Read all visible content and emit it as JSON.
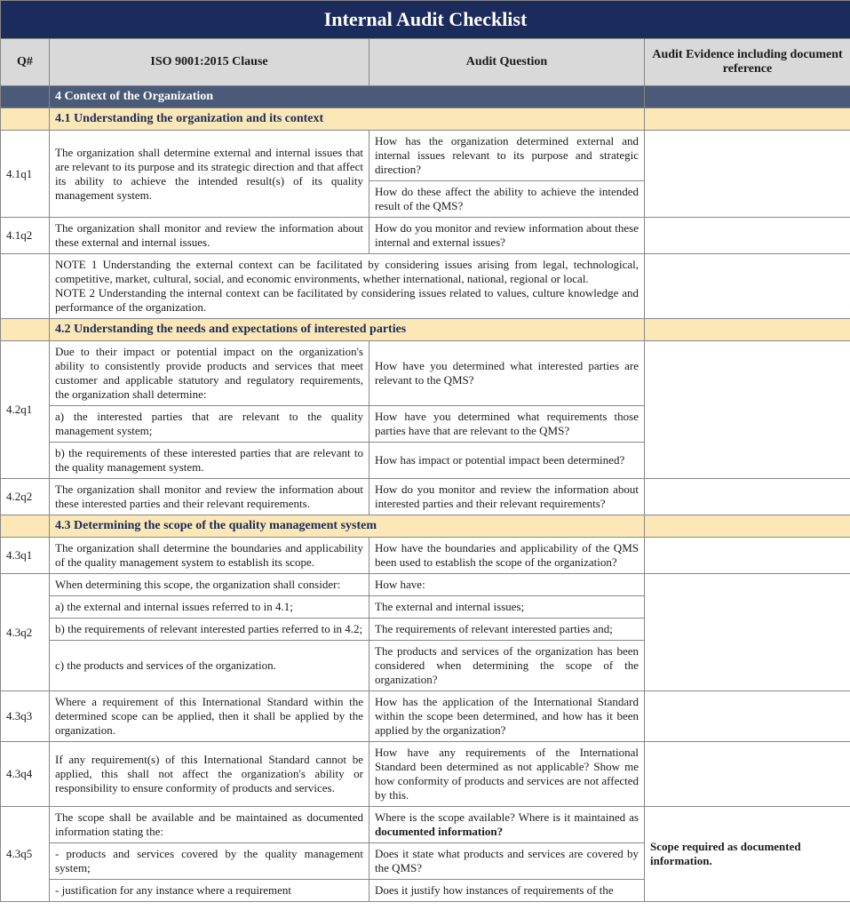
{
  "title": "Internal Audit Checklist",
  "headers": {
    "q": "Q#",
    "clause": "ISO 9001:2015 Clause",
    "question": "Audit Question",
    "evidence": "Audit Evidence including document reference"
  },
  "section4": "4 Context of the Organization",
  "sub41": "4.1 Understanding the organization and its context",
  "r41q1": {
    "q": "4.1q1",
    "clause": "The organization shall determine external and internal issues that are relevant to its purpose and its strategic direction and that affect its ability to achieve the intended result(s) of its quality management system.",
    "question1": "How has the organization determined external and internal issues relevant to its purpose and strategic direction?",
    "question2": "How do these affect the ability to achieve the intended result of the QMS?"
  },
  "r41q2": {
    "q": "4.1q2",
    "clause": "The organization shall monitor and review the information about these external and internal issues.",
    "question": "How do you monitor and review information about these internal and external issues?"
  },
  "note41": "NOTE 1 Understanding the external context can be facilitated by considering issues arising from legal, technological, competitive, market, cultural, social, and economic environments, whether international, national, regional or local.\nNOTE 2 Understanding the internal context can be facilitated by considering issues related to values, culture knowledge and performance of the organization.",
  "sub42": "4.2 Understanding the needs and expectations of interested parties",
  "r42q1": {
    "q": "4.2q1",
    "clause_intro": "Due to their impact or potential impact on the organization's ability to consistently provide products and services that meet customer and applicable statutory and regulatory requirements, the organization shall determine:",
    "clause_a": "a)   the interested parties that are relevant to the quality management system;",
    "clause_b": "b)   the requirements of these interested parties that are relevant to the quality management system.",
    "question1": "How have you determined what interested parties are relevant to the QMS?",
    "question2": "How have you determined what requirements those parties have that are relevant to the QMS?",
    "question3": "How has impact or potential impact been determined?"
  },
  "r42q2": {
    "q": "4.2q2",
    "clause": "The organization shall monitor and review the information about these interested parties and their relevant requirements.",
    "question": "How do you monitor and review the information about interested parties and their relevant requirements?"
  },
  "sub43": "4.3 Determining the scope of the quality management system",
  "r43q1": {
    "q": "4.3q1",
    "clause": "The organization shall determine the boundaries and applicability of the quality management system to establish its scope.",
    "question": "How have the boundaries and applicability of the QMS been used to establish the scope of the organization?"
  },
  "r43q2": {
    "q": "4.3q2",
    "clause_intro": "When determining this scope, the organization shall consider:",
    "clause_a": "a)   the external and internal issues referred to in 4.1;",
    "clause_b": "b)   the requirements of relevant interested parties referred to in 4.2;",
    "clause_c": "c)   the products and services of the organization.",
    "question_intro": "How have:",
    "question_a": "The external and internal issues;",
    "question_b": "The requirements of relevant interested parties and;",
    "question_c": "The products and services of the organization has been considered when determining the scope of the organization?"
  },
  "r43q3": {
    "q": "4.3q3",
    "clause": "Where a requirement of this International Standard within the determined scope can be applied, then it shall be applied by the organization.",
    "question": "How has the application of the International Standard within the scope been determined, and how has it been applied by the organization?"
  },
  "r43q4": {
    "q": "4.3q4",
    "clause": "If any requirement(s) of this International Standard cannot be applied, this shall not affect the organization's ability or responsibility to ensure conformity of products and services.",
    "question": "How have any requirements of the International Standard been determined as not applicable? Show me how conformity of products and services are not affected by this."
  },
  "r43q5": {
    "q": "4.3q5",
    "clause_intro": "The scope shall be available and be maintained as documented information stating the:",
    "clause_a": "-   products and services covered by the quality management system;",
    "clause_b": "-   justification for any instance where a requirement",
    "question_intro_pre": "Where is the scope available? Where is it maintained as ",
    "question_intro_bold": "documented information?",
    "question_a": "Does it state what products and services are covered by the QMS?",
    "question_b": "Does it justify how instances of requirements of the",
    "evidence": "Scope required as documented information."
  }
}
